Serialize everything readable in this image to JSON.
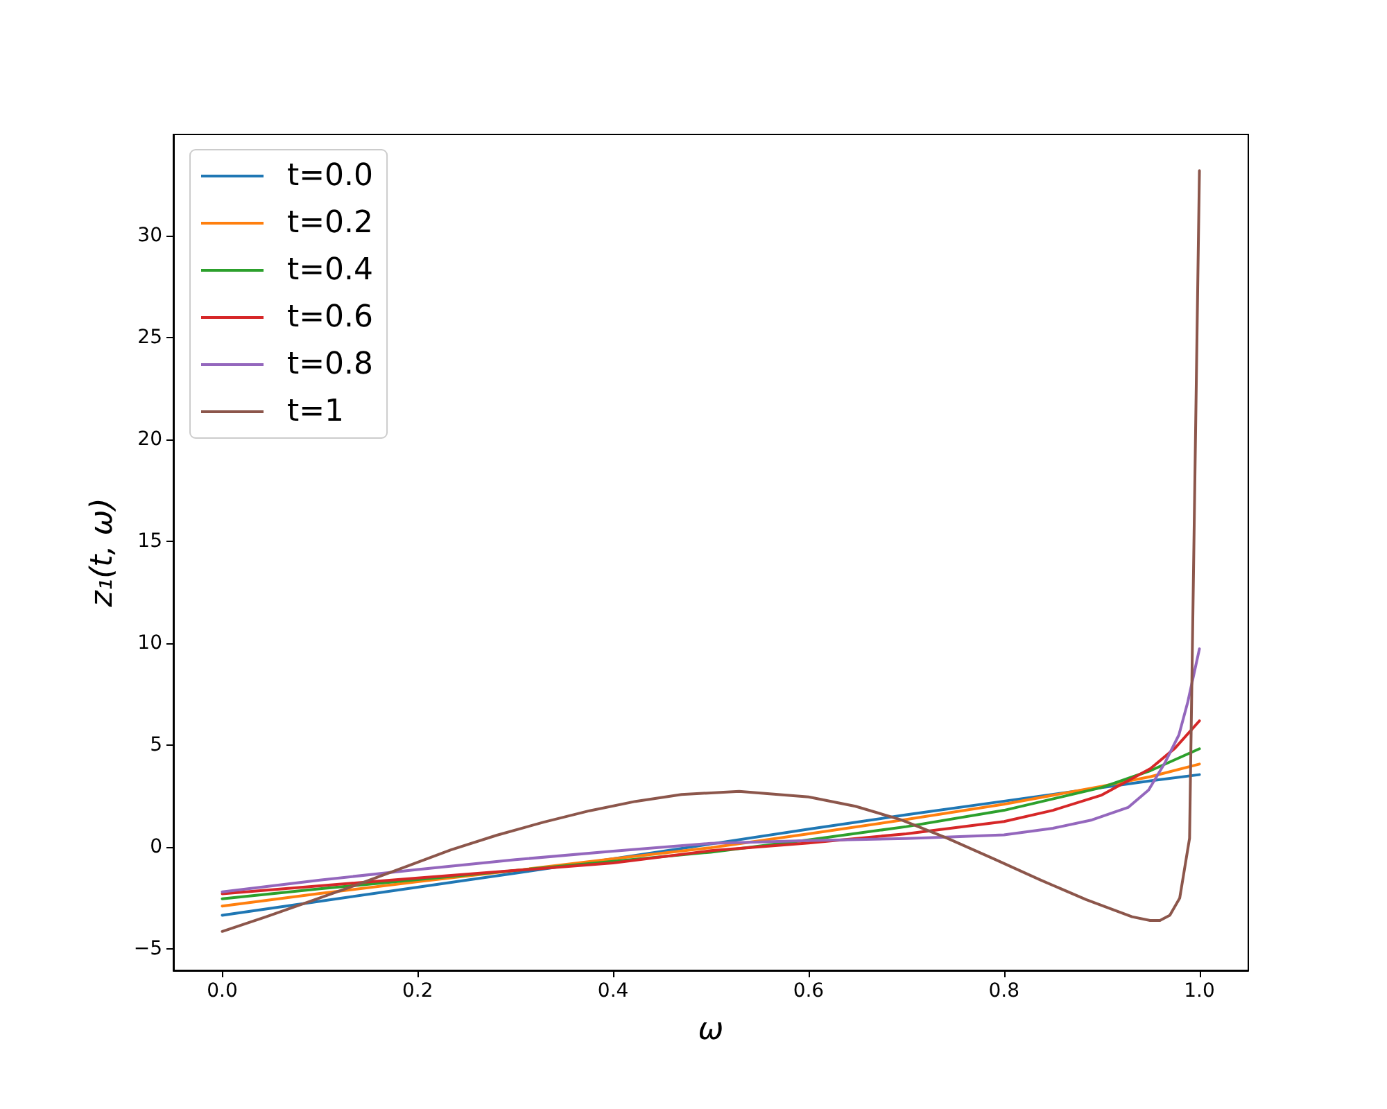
{
  "chart_data": {
    "type": "line",
    "xlabel": "ω",
    "ylabel": "z₁(t, ω)",
    "xlim": [
      -0.05,
      1.05
    ],
    "xticks": [
      {
        "value": 0,
        "label": "0.0"
      },
      0.2,
      0.4,
      0.6,
      0.8,
      {
        "value": 1,
        "label": "1.0"
      }
    ],
    "ylim": [
      -6.05,
      34.95
    ],
    "yticks": [
      {
        "value": -5,
        "label": "−5"
      },
      0,
      5,
      10,
      15,
      20,
      25,
      30
    ],
    "legend": "top left",
    "marker": "none",
    "line_style": "solid",
    "series": [
      {
        "name": "t=0.0",
        "color": "#1f77b4",
        "x": [
          0,
          0.1,
          0.2,
          0.3,
          0.4,
          0.5,
          0.6,
          0.7,
          0.8,
          0.9,
          0.95,
          1.0
        ],
        "values": [
          -3.35,
          -2.66,
          -1.97,
          -1.28,
          -0.58,
          0.15,
          0.88,
          1.58,
          2.25,
          2.92,
          3.25,
          3.55
        ]
      },
      {
        "name": "t=0.2",
        "color": "#ff7f0e",
        "x": [
          0,
          0.1,
          0.2,
          0.3,
          0.4,
          0.5,
          0.6,
          0.7,
          0.8,
          0.9,
          0.95,
          1.0
        ],
        "values": [
          -2.9,
          -2.28,
          -1.7,
          -1.15,
          -0.58,
          -0.03,
          0.65,
          1.35,
          2.1,
          2.98,
          3.45,
          4.07
        ]
      },
      {
        "name": "t=0.4",
        "color": "#2ca02c",
        "x": [
          0,
          0.1,
          0.2,
          0.3,
          0.4,
          0.5,
          0.6,
          0.7,
          0.8,
          0.9,
          0.95,
          1.0
        ],
        "values": [
          -2.54,
          -2.05,
          -1.6,
          -1.15,
          -0.7,
          -0.25,
          0.35,
          1.0,
          1.8,
          2.92,
          3.75,
          4.82
        ]
      },
      {
        "name": "t=0.6",
        "color": "#d62728",
        "x": [
          0,
          0.1,
          0.2,
          0.3,
          0.4,
          0.5,
          0.6,
          0.7,
          0.8,
          0.85,
          0.9,
          0.95,
          0.975,
          1.0
        ],
        "values": [
          -2.29,
          -1.9,
          -1.52,
          -1.15,
          -0.78,
          -0.18,
          0.2,
          0.65,
          1.25,
          1.8,
          2.55,
          3.85,
          4.85,
          6.19
        ]
      },
      {
        "name": "t=0.8",
        "color": "#9467bd",
        "x": [
          0,
          0.1,
          0.2,
          0.3,
          0.4,
          0.5,
          0.6,
          0.7,
          0.75,
          0.8,
          0.85,
          0.89,
          0.927,
          0.948,
          0.965,
          0.979,
          0.988,
          1.0
        ],
        "values": [
          -2.2,
          -1.62,
          -1.1,
          -0.62,
          -0.2,
          0.18,
          0.32,
          0.42,
          0.5,
          0.6,
          0.92,
          1.33,
          1.94,
          2.8,
          4.16,
          5.5,
          7.1,
          9.72
        ]
      },
      {
        "name": "t=1",
        "color": "#8c564b",
        "x": [
          0,
          0.045,
          0.092,
          0.139,
          0.187,
          0.234,
          0.281,
          0.329,
          0.376,
          0.423,
          0.47,
          0.529,
          0.6,
          0.648,
          0.695,
          0.742,
          0.79,
          0.837,
          0.884,
          0.931,
          0.9495,
          0.9596,
          0.9697,
          0.9798,
          0.9899,
          1.0
        ],
        "values": [
          -4.14,
          -3.42,
          -2.63,
          -1.83,
          -0.98,
          -0.14,
          0.58,
          1.22,
          1.78,
          2.24,
          2.58,
          2.73,
          2.46,
          2.0,
          1.33,
          0.43,
          -0.59,
          -1.61,
          -2.58,
          -3.42,
          -3.6,
          -3.6,
          -3.35,
          -2.51,
          0.43,
          33.17
        ]
      }
    ]
  }
}
